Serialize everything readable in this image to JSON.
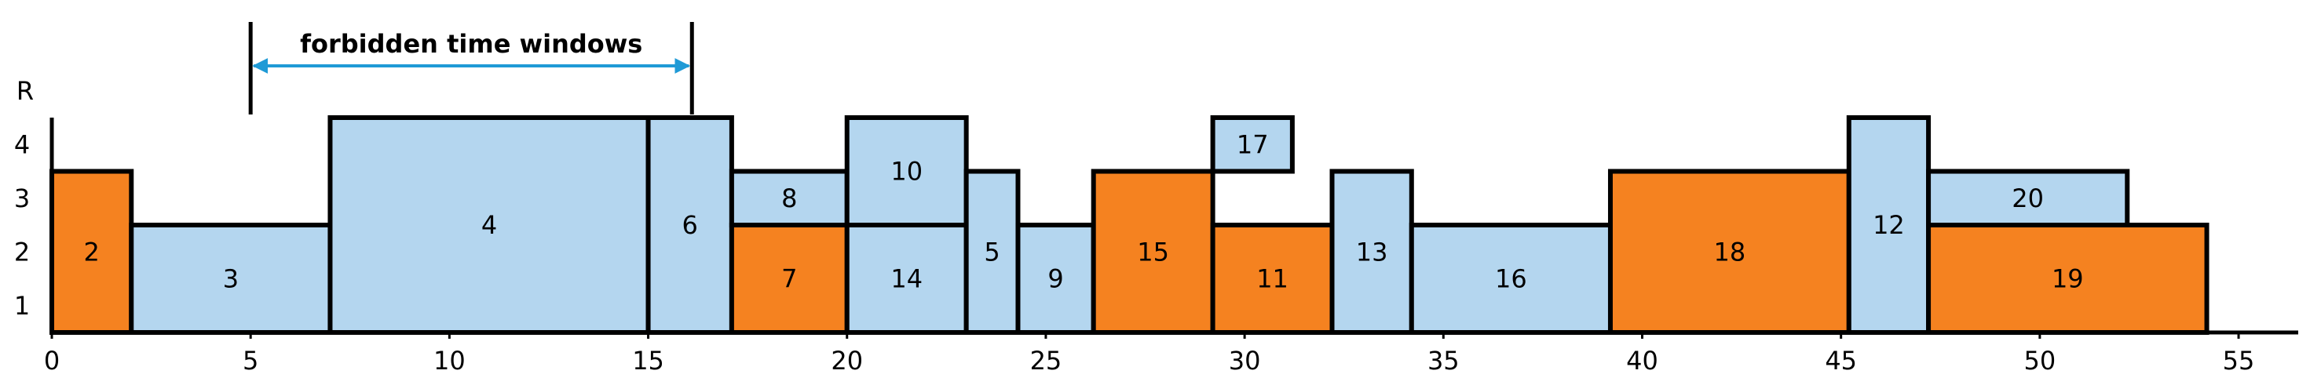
{
  "chart_data": {
    "type": "gantt",
    "y_axis_label": "R",
    "xlim": [
      0,
      56.5
    ],
    "xticks": [
      0,
      5,
      10,
      15,
      20,
      25,
      30,
      35,
      40,
      45,
      50,
      55
    ],
    "ylim": [
      0,
      4
    ],
    "yticks": [
      1,
      2,
      3,
      4
    ],
    "annotation": {
      "text": "forbidden time windows",
      "start": 5,
      "end": 16.1
    },
    "tasks": [
      {
        "name": "2",
        "start": 0,
        "end": 2,
        "bottom": 0,
        "top": 3,
        "color": "#f58220"
      },
      {
        "name": "3",
        "start": 2,
        "end": 7,
        "bottom": 0,
        "top": 2,
        "color": "#b4d6ef"
      },
      {
        "name": "4",
        "start": 7,
        "end": 15,
        "bottom": 0,
        "top": 4,
        "color": "#b4d6ef"
      },
      {
        "name": "6",
        "start": 15,
        "end": 17.1,
        "bottom": 0,
        "top": 4,
        "color": "#b4d6ef"
      },
      {
        "name": "8",
        "start": 17.1,
        "end": 20,
        "bottom": 2,
        "top": 3,
        "color": "#b4d6ef"
      },
      {
        "name": "7",
        "start": 17.1,
        "end": 20,
        "bottom": 0,
        "top": 2,
        "color": "#f58220"
      },
      {
        "name": "10",
        "start": 20,
        "end": 23,
        "bottom": 2,
        "top": 4,
        "color": "#b4d6ef"
      },
      {
        "name": "14",
        "start": 20,
        "end": 23,
        "bottom": 0,
        "top": 2,
        "color": "#b4d6ef"
      },
      {
        "name": "5",
        "start": 23,
        "end": 24.3,
        "bottom": 0,
        "top": 3,
        "color": "#b4d6ef"
      },
      {
        "name": "9",
        "start": 24.3,
        "end": 26.2,
        "bottom": 0,
        "top": 2,
        "color": "#b4d6ef"
      },
      {
        "name": "15",
        "start": 26.2,
        "end": 29.2,
        "bottom": 0,
        "top": 3,
        "color": "#f58220"
      },
      {
        "name": "17",
        "start": 29.2,
        "end": 31.2,
        "bottom": 3,
        "top": 4,
        "color": "#b4d6ef"
      },
      {
        "name": "11",
        "start": 29.2,
        "end": 32.2,
        "bottom": 0,
        "top": 2,
        "color": "#f58220"
      },
      {
        "name": "13",
        "start": 32.2,
        "end": 34.2,
        "bottom": 0,
        "top": 3,
        "color": "#b4d6ef"
      },
      {
        "name": "16",
        "start": 34.2,
        "end": 39.2,
        "bottom": 0,
        "top": 2,
        "color": "#b4d6ef"
      },
      {
        "name": "18",
        "start": 39.2,
        "end": 45.2,
        "bottom": 0,
        "top": 3,
        "color": "#f58220"
      },
      {
        "name": "12",
        "start": 45.2,
        "end": 47.2,
        "bottom": 0,
        "top": 4,
        "color": "#b4d6ef"
      },
      {
        "name": "20",
        "start": 47.2,
        "end": 52.2,
        "bottom": 2,
        "top": 3,
        "color": "#b4d6ef"
      },
      {
        "name": "19",
        "start": 47.2,
        "end": 54.2,
        "bottom": 0,
        "top": 2,
        "color": "#f58220"
      }
    ]
  }
}
